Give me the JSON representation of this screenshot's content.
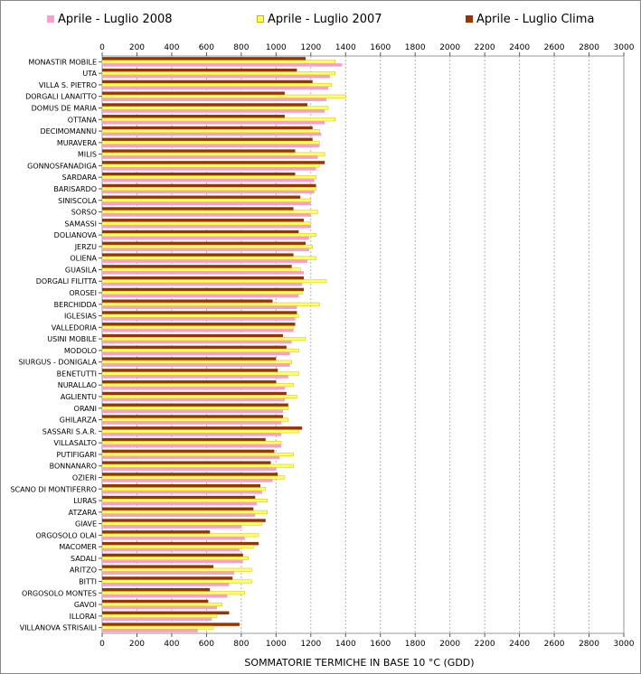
{
  "chart_data": {
    "type": "bar",
    "orientation": "horizontal",
    "xlabel": "SOMMATORIE TERMICHE IN BASE 10 °C (GDD)",
    "xlim": [
      0,
      3000
    ],
    "xticks": [
      0,
      200,
      400,
      600,
      800,
      1000,
      1200,
      1400,
      1600,
      1800,
      2000,
      2200,
      2400,
      2600,
      2800,
      3000
    ],
    "grid": true,
    "legend_position": "top",
    "categories": [
      "MONASTIR MOBILE",
      "UTA",
      "VILLA S. PIETRO",
      "DORGALI LANAITTO",
      "DOMUS DE MARIA",
      "OTTANA",
      "DECIMOMANNU",
      "MURAVERA",
      "MILIS",
      "GONNOSFANADIGA",
      "SARDARA",
      "BARISARDO",
      "SINISCOLA",
      "SORSO",
      "SAMASSI",
      "DOLIANOVA",
      "JERZU",
      "OLIENA",
      "GUASILA",
      "DORGALI FILITTA",
      "OROSEI",
      "BERCHIDDA",
      "IGLESIAS",
      "VALLEDORIA",
      "USINI MOBILE",
      "MODOLO",
      "SIURGUS - DONIGALA",
      "BENETUTTI",
      "NURALLAO",
      "AGLIENTU",
      "ORANI",
      "GHILARZA",
      "SASSARI S.A.R.",
      "VILLASALTO",
      "PUTIFIGARI",
      "BONNANARO",
      "OZIERI",
      "SCANO DI MONTIFERRO",
      "LURAS",
      "ATZARA",
      "GIAVE",
      "ORGOSOLO OLAI",
      "MACOMER",
      "SADALI",
      "ARITZO",
      "BITTI",
      "ORGOSOLO MONTES",
      "GAVOI",
      "ILLORAI",
      "VILLANOVA STRISAILI"
    ],
    "series": [
      {
        "name": "Aprile - Luglio 2008",
        "color": "#f4a0cc",
        "values": [
          1380,
          1310,
          1300,
          1290,
          1280,
          1280,
          1260,
          1250,
          1240,
          1230,
          1220,
          1220,
          1200,
          1200,
          1200,
          1190,
          1190,
          1180,
          1160,
          1150,
          1130,
          1120,
          1110,
          1100,
          1090,
          1080,
          1080,
          1070,
          1050,
          1050,
          1040,
          1030,
          1030,
          1030,
          1020,
          1000,
          980,
          920,
          890,
          880,
          800,
          820,
          790,
          810,
          760,
          730,
          720,
          660,
          630,
          550
        ]
      },
      {
        "name": "Aprile - Luglio 2007",
        "color": "#ffff66",
        "values": [
          1340,
          1340,
          1320,
          1400,
          1300,
          1340,
          1250,
          1250,
          1280,
          1250,
          1230,
          1230,
          1200,
          1240,
          1200,
          1230,
          1210,
          1230,
          1140,
          1290,
          1150,
          1250,
          1130,
          1100,
          1170,
          1130,
          1090,
          1130,
          1100,
          1120,
          1070,
          1070,
          1130,
          1030,
          1100,
          1100,
          1050,
          940,
          950,
          950,
          920,
          900,
          870,
          840,
          860,
          860,
          820,
          690,
          660,
          640
        ]
      },
      {
        "name": "Aprile - Luglio Clima",
        "color": "#993300",
        "values": [
          1170,
          1120,
          1210,
          1050,
          1180,
          1050,
          1210,
          1210,
          1110,
          1280,
          1110,
          1230,
          1140,
          1100,
          1160,
          1130,
          1170,
          1100,
          1090,
          1160,
          1160,
          980,
          1120,
          1110,
          1040,
          1060,
          1000,
          1010,
          1000,
          1060,
          1070,
          1040,
          1150,
          940,
          990,
          970,
          1010,
          910,
          880,
          870,
          940,
          620,
          900,
          810,
          640,
          750,
          620,
          610,
          730,
          790
        ]
      }
    ]
  }
}
